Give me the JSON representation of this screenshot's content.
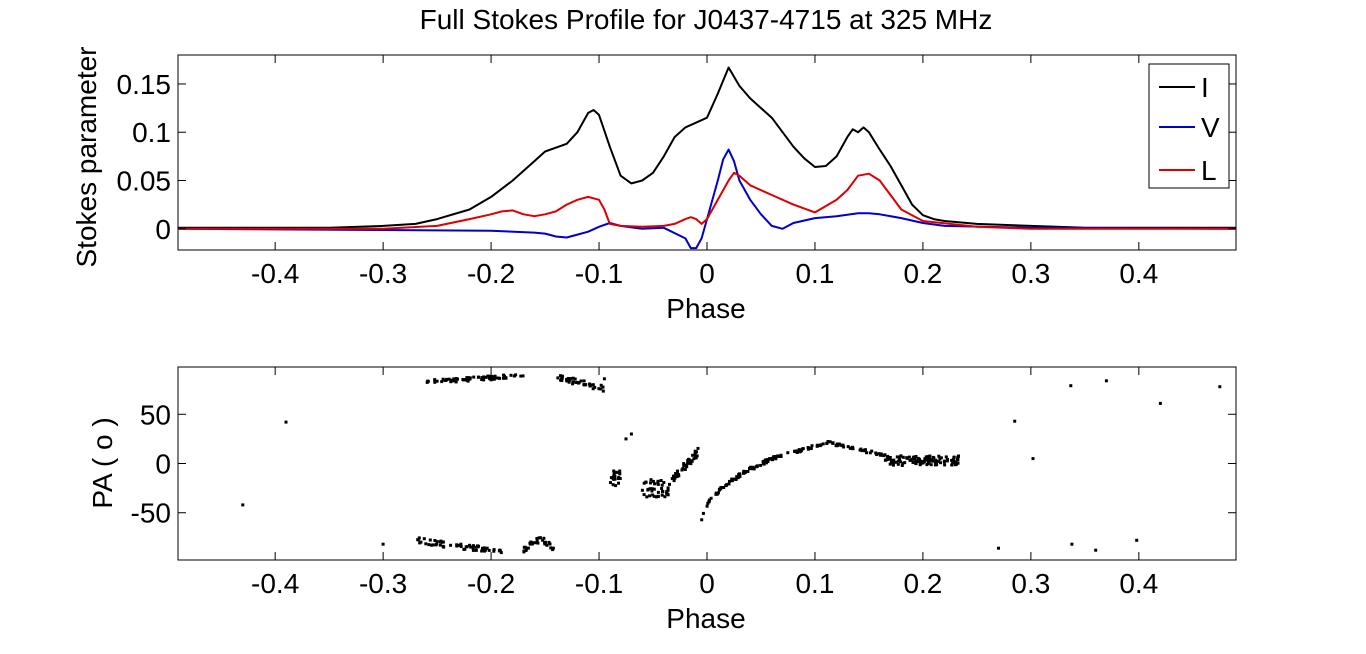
{
  "chart_data": [
    {
      "type": "line",
      "title": "Full Stokes Profile for J0437-4715 at 325 MHz",
      "xlabel": "Phase",
      "ylabel": "Stokes parameter",
      "xlim": [
        -0.49,
        0.49
      ],
      "ylim": [
        -0.022,
        0.18
      ],
      "xticks": [
        -0.4,
        -0.3,
        -0.2,
        -0.1,
        0,
        0.1,
        0.2,
        0.3,
        0.4
      ],
      "xtick_labels": [
        "-0.4",
        "-0.3",
        "-0.2",
        "-0.1",
        "0",
        "0.1",
        "0.2",
        "0.3",
        "0.4"
      ],
      "yticks": [
        0,
        0.05,
        0.1,
        0.15
      ],
      "ytick_labels": [
        "0",
        "0.05",
        "0.1",
        "0.15"
      ],
      "legend_position": "top-right",
      "series": [
        {
          "name": "I",
          "color": "#000000",
          "x": [
            -0.49,
            -0.35,
            -0.3,
            -0.27,
            -0.25,
            -0.22,
            -0.2,
            -0.18,
            -0.16,
            -0.15,
            -0.13,
            -0.12,
            -0.11,
            -0.105,
            -0.1,
            -0.09,
            -0.08,
            -0.07,
            -0.06,
            -0.05,
            -0.04,
            -0.03,
            -0.02,
            -0.01,
            0,
            0.01,
            0.02,
            0.03,
            0.04,
            0.05,
            0.06,
            0.07,
            0.08,
            0.09,
            0.1,
            0.11,
            0.12,
            0.13,
            0.135,
            0.14,
            0.145,
            0.15,
            0.16,
            0.17,
            0.18,
            0.19,
            0.2,
            0.21,
            0.22,
            0.25,
            0.3,
            0.35,
            0.49
          ],
          "values": [
            0.001,
            0.001,
            0.003,
            0.005,
            0.01,
            0.02,
            0.033,
            0.05,
            0.07,
            0.08,
            0.088,
            0.1,
            0.12,
            0.123,
            0.118,
            0.085,
            0.055,
            0.047,
            0.05,
            0.058,
            0.075,
            0.095,
            0.105,
            0.11,
            0.115,
            0.14,
            0.167,
            0.148,
            0.135,
            0.125,
            0.115,
            0.1,
            0.085,
            0.073,
            0.064,
            0.065,
            0.075,
            0.095,
            0.103,
            0.1,
            0.105,
            0.1,
            0.082,
            0.065,
            0.045,
            0.025,
            0.014,
            0.01,
            0.008,
            0.005,
            0.003,
            0.001,
            0.001
          ]
        },
        {
          "name": "V",
          "color": "#0000cc",
          "x": [
            -0.49,
            -0.2,
            -0.16,
            -0.15,
            -0.14,
            -0.13,
            -0.12,
            -0.11,
            -0.1,
            -0.09,
            -0.08,
            -0.06,
            -0.04,
            -0.02,
            -0.015,
            -0.01,
            -0.005,
            0,
            0.01,
            0.015,
            0.02,
            0.025,
            0.03,
            0.04,
            0.05,
            0.06,
            0.07,
            0.08,
            0.1,
            0.12,
            0.14,
            0.15,
            0.16,
            0.18,
            0.2,
            0.22,
            0.3,
            0.49
          ],
          "values": [
            0,
            -0.002,
            -0.004,
            -0.005,
            -0.008,
            -0.009,
            -0.006,
            -0.003,
            0.002,
            0.006,
            0.003,
            0,
            0.001,
            -0.01,
            -0.02,
            -0.02,
            -0.01,
            0.01,
            0.05,
            0.072,
            0.082,
            0.07,
            0.05,
            0.03,
            0.015,
            0.003,
            0,
            0.006,
            0.011,
            0.013,
            0.016,
            0.016,
            0.015,
            0.011,
            0.006,
            0.003,
            0.001,
            0
          ]
        },
        {
          "name": "L",
          "color": "#dd0000",
          "x": [
            -0.49,
            -0.3,
            -0.25,
            -0.22,
            -0.2,
            -0.19,
            -0.18,
            -0.17,
            -0.16,
            -0.15,
            -0.14,
            -0.13,
            -0.12,
            -0.11,
            -0.1,
            -0.095,
            -0.09,
            -0.08,
            -0.06,
            -0.04,
            -0.03,
            -0.02,
            -0.015,
            -0.01,
            -0.005,
            0,
            0.01,
            0.02,
            0.025,
            0.03,
            0.04,
            0.06,
            0.08,
            0.1,
            0.12,
            0.13,
            0.14,
            0.15,
            0.16,
            0.17,
            0.18,
            0.2,
            0.25,
            0.3,
            0.49
          ],
          "values": [
            0,
            0,
            0.003,
            0.01,
            0.015,
            0.018,
            0.019,
            0.015,
            0.013,
            0.015,
            0.018,
            0.025,
            0.03,
            0.033,
            0.03,
            0.02,
            0.005,
            0.003,
            0.002,
            0.003,
            0.005,
            0.01,
            0.012,
            0.01,
            0.005,
            0.01,
            0.03,
            0.05,
            0.058,
            0.055,
            0.045,
            0.035,
            0.025,
            0.017,
            0.03,
            0.04,
            0.055,
            0.057,
            0.05,
            0.035,
            0.02,
            0.008,
            0.002,
            0,
            0
          ]
        }
      ]
    },
    {
      "type": "scatter",
      "title": "",
      "xlabel": "Phase",
      "ylabel": "PA ( o )",
      "xlim": [
        -0.49,
        0.49
      ],
      "ylim": [
        -98,
        98
      ],
      "xticks": [
        -0.4,
        -0.3,
        -0.2,
        -0.1,
        0,
        0.1,
        0.2,
        0.3,
        0.4
      ],
      "xtick_labels": [
        "-0.4",
        "-0.3",
        "-0.2",
        "-0.1",
        "0",
        "0.1",
        "0.2",
        "0.3",
        "0.4"
      ],
      "yticks": [
        -50,
        0,
        50
      ],
      "ytick_labels": [
        "-50",
        "0",
        "50"
      ],
      "series": [
        {
          "name": "PA",
          "color": "#000000"
        }
      ]
    }
  ]
}
